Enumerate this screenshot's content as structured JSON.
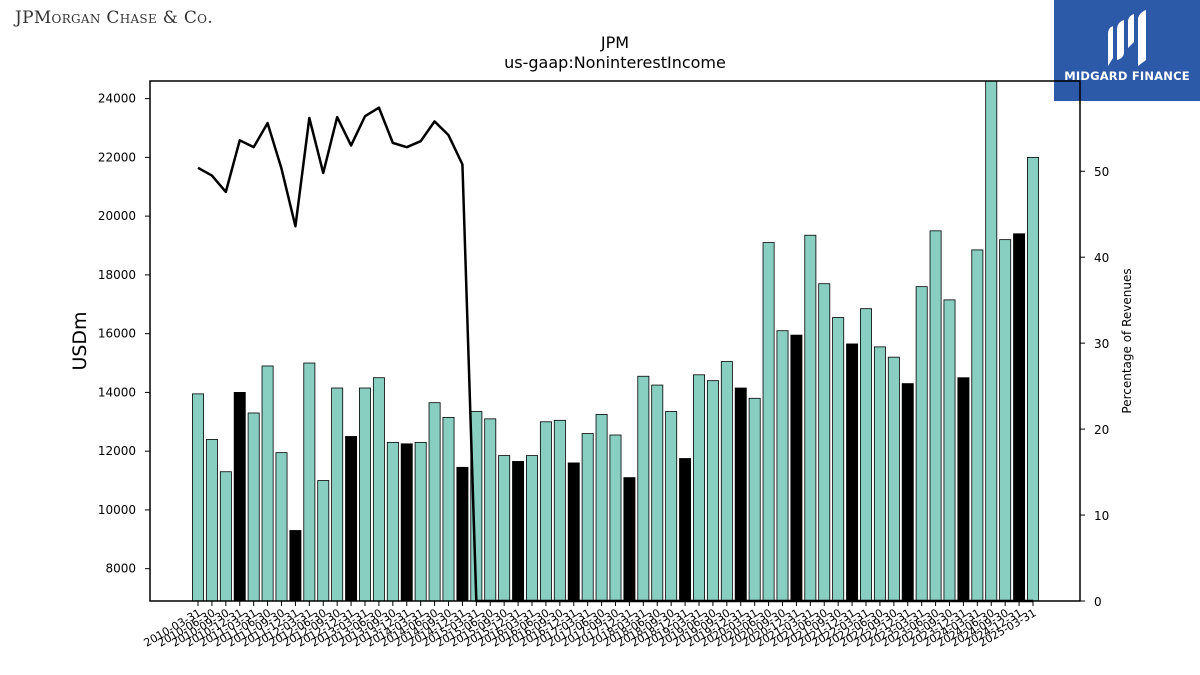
{
  "branding": {
    "left_logo": "JPMorgan Chase & Co.",
    "right_logo": "MIDGARD FINANCE"
  },
  "colors": {
    "bar_normal": "#88cfc2",
    "bar_q4": "#000000",
    "line": "#000000"
  },
  "chart_data": {
    "type": "bar",
    "title": "JPM",
    "subtitle": "us-gaap:NoninterestIncome",
    "ylabel": "USDm",
    "y2label": "Percentage of Revenues",
    "ylim": [
      6900,
      24600
    ],
    "y2lim": [
      0,
      60.5
    ],
    "yticks": [
      8000,
      10000,
      12000,
      14000,
      16000,
      18000,
      20000,
      22000,
      24000
    ],
    "y2ticks": [
      0,
      10,
      20,
      30,
      40,
      50
    ],
    "categories": [
      "2010-03-31",
      "2010-06-30",
      "2010-09-30",
      "2010-12-31",
      "2011-03-31",
      "2011-06-30",
      "2011-09-30",
      "2011-12-31",
      "2012-03-31",
      "2012-06-30",
      "2012-09-30",
      "2012-12-31",
      "2013-03-31",
      "2013-06-30",
      "2013-09-30",
      "2013-12-31",
      "2014-03-31",
      "2014-06-30",
      "2014-09-30",
      "2014-12-31",
      "2015-03-31",
      "2015-06-30",
      "2015-09-30",
      "2015-12-31",
      "2016-03-31",
      "2016-06-30",
      "2016-09-30",
      "2016-12-31",
      "2017-03-31",
      "2017-06-30",
      "2017-09-30",
      "2017-12-31",
      "2018-03-31",
      "2018-06-30",
      "2018-09-30",
      "2018-12-31",
      "2019-03-31",
      "2019-06-30",
      "2019-09-30",
      "2019-12-31",
      "2020-03-31",
      "2020-06-30",
      "2020-09-30",
      "2020-12-31",
      "2021-03-31",
      "2021-06-30",
      "2021-09-30",
      "2021-12-31",
      "2022-03-31",
      "2022-06-30",
      "2022-09-30",
      "2022-12-31",
      "2023-03-31",
      "2023-06-30",
      "2023-09-30",
      "2023-12-31",
      "2024-03-31",
      "2024-06-30",
      "2024-09-30",
      "2024-12-31",
      "2025-03-31"
    ],
    "visible_tick_labels": [
      "2010-03-31",
      "2010-06-30",
      "2010-09-30",
      "2010-12-31",
      "2011-03-31",
      "2011-06-30",
      "2011-09-30",
      "2011-12-31",
      "2012-03-31",
      "2012-06-30",
      "2012-09-30",
      "2012-12-31",
      "2013-03-31",
      "2013-06-30",
      "2013-09-30",
      "2013-12-31",
      "2014-03-31",
      "2014-06-30",
      "2014-09-30",
      "2014-12-31",
      "2015-03-31",
      "2015-06-30",
      "2015-09-30",
      "2015-12-31",
      "2016-03-31",
      "2016-06-30",
      "2016-09-30",
      "2016-12-31",
      "2017-03-31",
      "2017-06-30",
      "2017-09-30",
      "2017-12-31",
      "2018-03-31",
      "2018-06-30",
      "2018-09-30",
      "2018-12-31",
      "2019-03-31",
      "2019-06-30",
      "2019-09-30",
      "2019-12-31",
      "2020-03-31",
      "2020-06-30",
      "2020-09-30",
      "2020-12-31",
      "2021-03-31",
      "2021-06-30",
      "2021-09-30",
      "2021-12-31",
      "2022-03-31",
      "2022-06-30",
      "2022-09-30",
      "2022-12-31",
      "2023-03-31",
      "2023-06-30",
      "2023-09-30",
      "2023-12-31",
      "2024-03-31",
      "2024-06-30",
      "2024-09-30",
      "2024-12-31",
      "2025-03-31"
    ],
    "series": [
      {
        "name": "NoninterestIncome",
        "axis": "left",
        "values": [
          13950,
          12400,
          11300,
          14000,
          13300,
          14900,
          11950,
          9300,
          15000,
          11000,
          14150,
          12500,
          14150,
          14500,
          12300,
          12250,
          12300,
          13650,
          13150,
          11450,
          13350,
          13100,
          11850,
          11650,
          11850,
          13000,
          13050,
          11600,
          12600,
          13250,
          12550,
          11100,
          14550,
          14250,
          13350,
          11750,
          14600,
          14400,
          15050,
          14150,
          13800,
          19100,
          16100,
          15950,
          19350,
          17700,
          16550,
          15650,
          16850,
          15550,
          15200,
          14300,
          17600,
          19500,
          17150,
          14500,
          18850,
          24600,
          19200,
          19400,
          22000
        ]
      },
      {
        "name": "Percentage of Revenues",
        "axis": "right",
        "type": "line",
        "values": [
          50.4,
          49.5,
          47.6,
          53.6,
          52.8,
          55.6,
          50.3,
          43.6,
          56.2,
          49.8,
          56.3,
          53.0,
          56.4,
          57.4,
          53.3,
          52.8,
          53.5,
          55.8,
          54.2,
          50.8,
          0,
          0,
          0,
          0,
          0,
          0,
          0,
          0,
          0,
          0,
          0,
          0,
          0,
          0,
          0,
          0,
          0,
          0,
          0,
          0,
          0,
          0,
          0,
          0,
          0,
          0,
          0,
          0,
          0,
          0,
          0,
          0,
          0,
          0,
          0,
          0,
          0,
          0,
          0,
          0,
          0
        ]
      }
    ]
  }
}
